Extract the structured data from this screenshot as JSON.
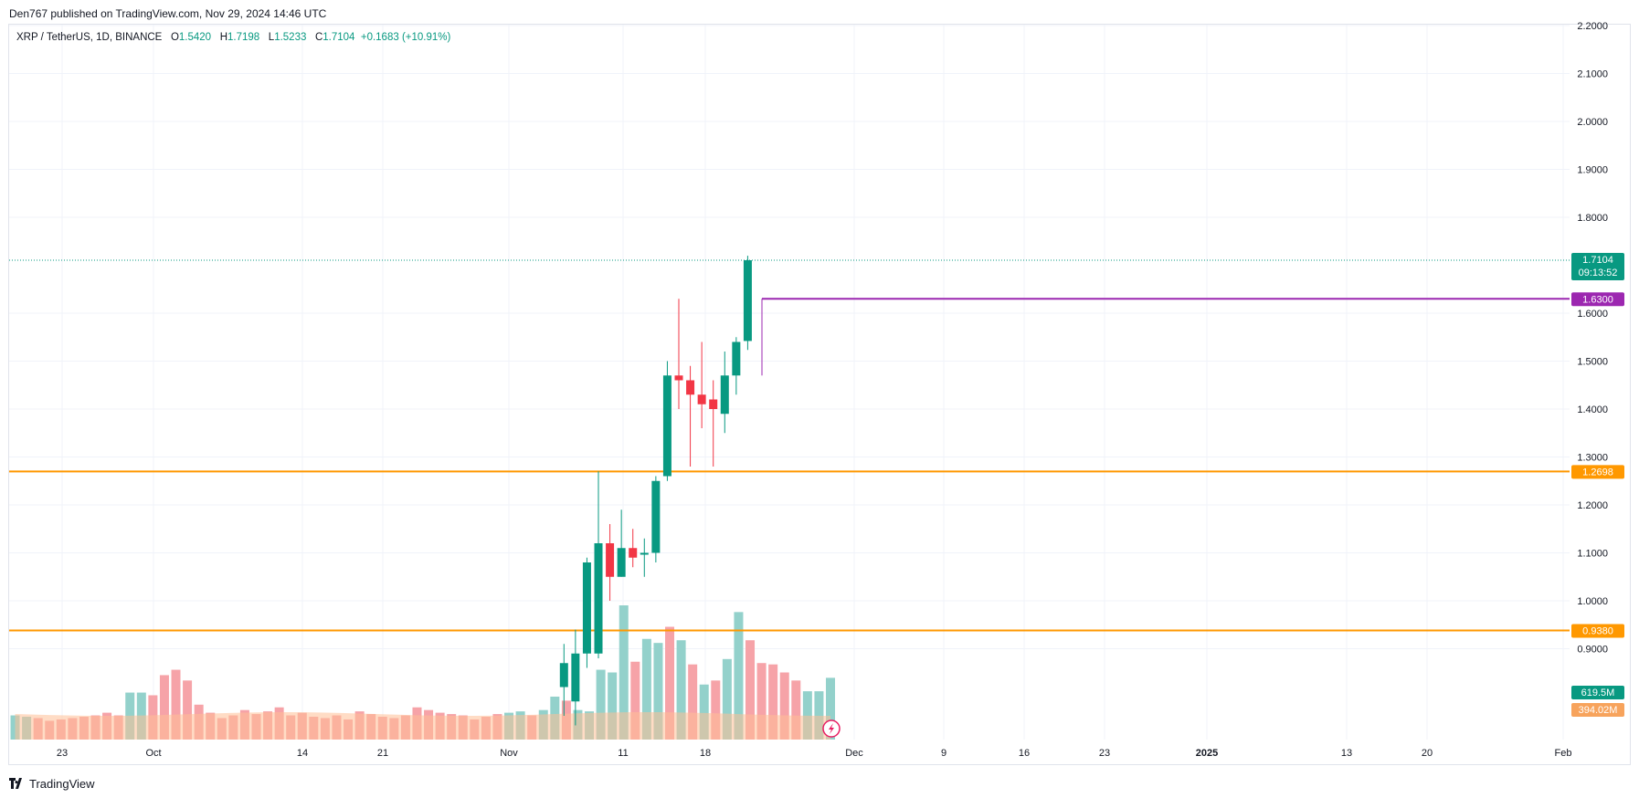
{
  "header": {
    "publisher": "Den767 published on TradingView.com, Nov 29, 2024 14:46 UTC"
  },
  "legend": {
    "symbol": "XRP / TetherUS, 1D, BINANCE",
    "open_label": "O",
    "open": "1.5420",
    "high_label": "H",
    "high": "1.7198",
    "low_label": "L",
    "low": "1.5233",
    "close_label": "C",
    "close": "1.7104",
    "change": "+0.1683 (+10.91%)"
  },
  "footer": {
    "brand": "TradingView"
  },
  "colors": {
    "up": "#089981",
    "down": "#f23645",
    "vol_up": "#93d1cb",
    "vol_down": "#f6a3a8",
    "vol_ma": "#ffbf95",
    "level_orange": "#ff9800",
    "level_purple": "#9c27b0",
    "grid": "#f0f3fa"
  },
  "chart_data": {
    "type": "candlestick",
    "title": "XRP / TetherUS, 1D, BINANCE",
    "y_range": [
      0.72,
      2.22
    ],
    "y_ticks": [
      "2.2000",
      "2.1000",
      "2.0000",
      "1.9000",
      "1.8000",
      "1.6000",
      "1.5000",
      "1.4000",
      "1.3000",
      "1.2000",
      "1.1000",
      "1.0000",
      "0.9000"
    ],
    "x_ticks": [
      "23",
      "Oct",
      "14",
      "21",
      "Nov",
      "11",
      "18",
      "Dec",
      "9",
      "16",
      "23",
      "2025",
      "13",
      "20",
      "Feb"
    ],
    "candles": [
      {
        "date": "2024-11-12",
        "o": 0.82,
        "h": 0.91,
        "l": 0.76,
        "c": 0.87
      },
      {
        "date": "2024-11-13",
        "o": 0.79,
        "h": 0.94,
        "l": 0.74,
        "c": 0.89
      },
      {
        "date": "2024-11-14",
        "o": 0.89,
        "h": 1.09,
        "l": 0.86,
        "c": 1.08
      },
      {
        "date": "2024-11-15",
        "o": 0.89,
        "h": 1.27,
        "l": 0.88,
        "c": 1.12
      },
      {
        "date": "2024-11-16",
        "o": 1.12,
        "h": 1.16,
        "l": 1.0,
        "c": 1.05
      },
      {
        "date": "2024-11-17",
        "o": 1.05,
        "h": 1.19,
        "l": 1.05,
        "c": 1.11
      },
      {
        "date": "2024-11-18",
        "o": 1.11,
        "h": 1.15,
        "l": 1.07,
        "c": 1.09
      },
      {
        "date": "2024-11-19",
        "o": 1.1,
        "h": 1.13,
        "l": 1.05,
        "c": 1.1
      },
      {
        "date": "2024-11-20",
        "o": 1.1,
        "h": 1.26,
        "l": 1.08,
        "c": 1.25
      },
      {
        "date": "2024-11-21",
        "o": 1.26,
        "h": 1.5,
        "l": 1.25,
        "c": 1.47
      },
      {
        "date": "2024-11-22",
        "o": 1.47,
        "h": 1.63,
        "l": 1.4,
        "c": 1.46
      },
      {
        "date": "2024-11-23",
        "o": 1.46,
        "h": 1.49,
        "l": 1.28,
        "c": 1.43
      },
      {
        "date": "2024-11-24",
        "o": 1.43,
        "h": 1.54,
        "l": 1.36,
        "c": 1.41
      },
      {
        "date": "2024-11-25",
        "o": 1.42,
        "h": 1.46,
        "l": 1.28,
        "c": 1.4
      },
      {
        "date": "2024-11-26",
        "o": 1.39,
        "h": 1.52,
        "l": 1.35,
        "c": 1.47
      },
      {
        "date": "2024-11-27",
        "o": 1.47,
        "h": 1.55,
        "l": 1.43,
        "c": 1.54
      },
      {
        "date": "2024-11-28",
        "o": 1.542,
        "h": 1.7198,
        "l": 1.5233,
        "c": 1.7104
      }
    ],
    "volume": [
      {
        "up": true,
        "v": 0.18
      },
      {
        "up": true,
        "v": 0.17
      },
      {
        "up": false,
        "v": 0.16
      },
      {
        "up": false,
        "v": 0.14
      },
      {
        "up": false,
        "v": 0.15
      },
      {
        "up": false,
        "v": 0.16
      },
      {
        "up": false,
        "v": 0.17
      },
      {
        "up": false,
        "v": 0.18
      },
      {
        "up": false,
        "v": 0.2
      },
      {
        "up": false,
        "v": 0.18
      },
      {
        "up": true,
        "v": 0.35
      },
      {
        "up": true,
        "v": 0.35
      },
      {
        "up": false,
        "v": 0.33
      },
      {
        "up": false,
        "v": 0.48
      },
      {
        "up": false,
        "v": 0.52
      },
      {
        "up": false,
        "v": 0.44
      },
      {
        "up": false,
        "v": 0.26
      },
      {
        "up": false,
        "v": 0.2
      },
      {
        "up": false,
        "v": 0.16
      },
      {
        "up": false,
        "v": 0.18
      },
      {
        "up": false,
        "v": 0.22
      },
      {
        "up": false,
        "v": 0.19
      },
      {
        "up": false,
        "v": 0.21
      },
      {
        "up": false,
        "v": 0.24
      },
      {
        "up": false,
        "v": 0.18
      },
      {
        "up": false,
        "v": 0.2
      },
      {
        "up": false,
        "v": 0.17
      },
      {
        "up": false,
        "v": 0.16
      },
      {
        "up": false,
        "v": 0.18
      },
      {
        "up": false,
        "v": 0.15
      },
      {
        "up": false,
        "v": 0.21
      },
      {
        "up": false,
        "v": 0.19
      },
      {
        "up": false,
        "v": 0.17
      },
      {
        "up": false,
        "v": 0.16
      },
      {
        "up": false,
        "v": 0.18
      },
      {
        "up": false,
        "v": 0.24
      },
      {
        "up": false,
        "v": 0.22
      },
      {
        "up": false,
        "v": 0.2
      },
      {
        "up": false,
        "v": 0.19
      },
      {
        "up": false,
        "v": 0.18
      },
      {
        "up": false,
        "v": 0.15
      },
      {
        "up": false,
        "v": 0.17
      },
      {
        "up": false,
        "v": 0.19
      },
      {
        "up": true,
        "v": 0.2
      },
      {
        "up": true,
        "v": 0.21
      },
      {
        "up": false,
        "v": 0.18
      },
      {
        "up": true,
        "v": 0.22
      },
      {
        "up": true,
        "v": 0.32
      },
      {
        "up": false,
        "v": 0.29
      },
      {
        "up": true,
        "v": 0.22
      },
      {
        "up": true,
        "v": 0.21
      },
      {
        "up": true,
        "v": 0.52
      },
      {
        "up": true,
        "v": 0.5
      },
      {
        "up": true,
        "v": 1.0
      },
      {
        "up": false,
        "v": 0.58
      },
      {
        "up": true,
        "v": 0.75
      },
      {
        "up": true,
        "v": 0.72
      },
      {
        "up": false,
        "v": 0.84
      },
      {
        "up": true,
        "v": 0.74
      },
      {
        "up": false,
        "v": 0.56
      },
      {
        "up": true,
        "v": 0.41
      },
      {
        "up": false,
        "v": 0.44
      },
      {
        "up": true,
        "v": 0.6
      },
      {
        "up": true,
        "v": 0.95
      },
      {
        "up": false,
        "v": 0.74
      },
      {
        "up": false,
        "v": 0.57
      },
      {
        "up": false,
        "v": 0.56
      },
      {
        "up": false,
        "v": 0.5
      },
      {
        "up": false,
        "v": 0.44
      },
      {
        "up": true,
        "v": 0.36
      },
      {
        "up": true,
        "v": 0.36
      },
      {
        "up": true,
        "v": 0.46
      }
    ],
    "levels": [
      {
        "price": 1.63,
        "label": "1.6300",
        "color": "#9c27b0"
      },
      {
        "price": 1.2698,
        "label": "1.2698",
        "color": "#ff9800"
      },
      {
        "price": 0.938,
        "label": "0.9380",
        "color": "#ff9800"
      }
    ],
    "last_price": {
      "label": "1.7104",
      "countdown": "09:13:52"
    },
    "volume_labels": {
      "volume": "619.5M",
      "volume_ma": "394.02M"
    }
  }
}
